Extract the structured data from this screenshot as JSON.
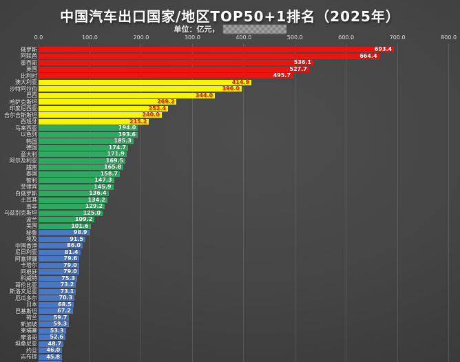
{
  "title": "中国汽车出口国家/地区TOP50+1排名（2025年）",
  "subtitle": {
    "unit_label": "单位：亿元，",
    "watermark_note": "pixelated-watermark"
  },
  "colors": {
    "background": "#3f3f3f",
    "title_text": "#ffffff",
    "axis_text": "#dcdcdc",
    "label_text": "#ececec",
    "gridline": "rgba(255,255,255,0.13)",
    "tier_red": "#ed1410",
    "tier_yellow": "#f8f500",
    "tier_green": "#2fa95f",
    "tier_blue": "#4a77c2",
    "yellow_value_text": "#e02818"
  },
  "chart_data": {
    "type": "bar",
    "orientation": "horizontal",
    "title": "中国汽车出口国家/地区TOP50+1排名（2025年）",
    "unit": "亿元",
    "xlim": [
      0,
      800
    ],
    "x_ticks": [
      0,
      100,
      200,
      300,
      400,
      500,
      600,
      700,
      800
    ],
    "grid": true,
    "legend": "none",
    "value_tiers": [
      {
        "min": 450,
        "bar": "#ed1410",
        "text": "#ffffff"
      },
      {
        "min": 200,
        "bar": "#f8f500",
        "text": "#e02818"
      },
      {
        "min": 100,
        "bar": "#2fa95f",
        "text": "#ffffff"
      },
      {
        "min": 0,
        "bar": "#4a77c2",
        "text": "#ffffff"
      }
    ],
    "categories": [
      "俄罗斯",
      "阿联酋",
      "墨西哥",
      "英国",
      "比利时",
      "澳大利亚",
      "沙特阿拉伯",
      "巴西",
      "哈萨克斯坦",
      "印度尼西亚",
      "吉尔吉斯斯坦",
      "西班牙",
      "马来西亚",
      "以色列",
      "韩国",
      "德国",
      "意大利",
      "阿尔及利亚",
      "越南",
      "泰国",
      "智利",
      "菲律宾",
      "白俄罗斯",
      "土耳其",
      "南非",
      "乌兹别克斯坦",
      "波兰",
      "美国",
      "秘鲁",
      "埃及",
      "中国香港",
      "尼日利亚",
      "阿塞拜疆",
      "卡塔尔",
      "阿根廷",
      "科威特",
      "哥伦比亚",
      "斯洛文尼亚",
      "厄瓜多尔",
      "日本",
      "巴基斯坦",
      "荷兰",
      "新加坡",
      "柬埔寨",
      "摩洛哥",
      "坦桑尼亚",
      "约旦",
      "吉布提"
    ],
    "values": [
      693.4,
      664.4,
      536.1,
      527.7,
      495.7,
      414.9,
      396.0,
      344.0,
      269.2,
      252.4,
      240.0,
      215.2,
      194.0,
      193.6,
      185.3,
      174.7,
      171.9,
      169.5,
      165.8,
      158.7,
      147.3,
      145.9,
      136.4,
      134.2,
      129.2,
      125.0,
      109.2,
      101.6,
      98.9,
      91.5,
      86.0,
      81.4,
      79.6,
      79.0,
      79.0,
      75.3,
      73.2,
      73.1,
      70.3,
      68.5,
      67.2,
      59.7,
      59.3,
      53.3,
      52.6,
      48.7,
      46.0,
      45.8
    ],
    "cropped_partial_bar": {
      "label_visible": false,
      "approx_value": 45.5
    }
  }
}
